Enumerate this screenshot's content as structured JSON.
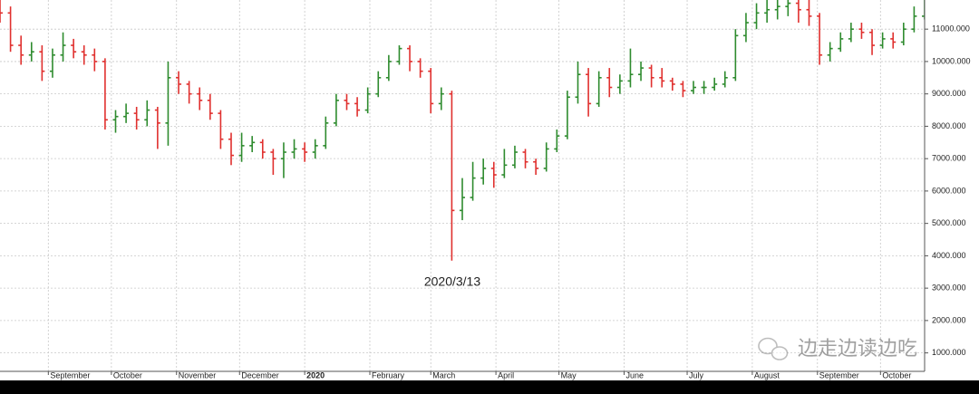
{
  "chart_data": {
    "type": "ohlc",
    "x": [
      0,
      5,
      10,
      15,
      20,
      25,
      30,
      35,
      40,
      45,
      50,
      55,
      60,
      65,
      70,
      75,
      80,
      85,
      90,
      95,
      100,
      105,
      110,
      115,
      120,
      125,
      130,
      135,
      140,
      145,
      150,
      155,
      160,
      165,
      170,
      175,
      180,
      185,
      190,
      195,
      200,
      205,
      210,
      215,
      220,
      225,
      230,
      235,
      240,
      245,
      250,
      255,
      260,
      265,
      270,
      275,
      280,
      285,
      290,
      295,
      300,
      305,
      310,
      315,
      320,
      325,
      330,
      335,
      340,
      345,
      350,
      355,
      360,
      365,
      370,
      375,
      380,
      385,
      390,
      395,
      400,
      405,
      410,
      415,
      420,
      425,
      430,
      435,
      440
    ],
    "open": [
      11700,
      11500,
      10500,
      10200,
      10300,
      9700,
      10200,
      10500,
      10300,
      10200,
      10000,
      8200,
      8300,
      8400,
      8200,
      8500,
      8100,
      9500,
      9300,
      9000,
      8800,
      8400,
      7600,
      7100,
      7400,
      7500,
      7200,
      7000,
      7200,
      7300,
      7200,
      7400,
      8100,
      8800,
      8700,
      8500,
      9000,
      9500,
      10000,
      10400,
      10000,
      9700,
      8700,
      9000,
      5400,
      5800,
      6400,
      6700,
      6500,
      6800,
      7200,
      6900,
      6700,
      7300,
      7700,
      8900,
      9600,
      8700,
      9500,
      9200,
      9400,
      9600,
      9800,
      9500,
      9400,
      9300,
      9100,
      9200,
      9200,
      9300,
      9500,
      10800,
      11200,
      11500,
      11600,
      11700,
      11800,
      11600,
      11400,
      10200,
      10400,
      10700,
      11000,
      10900,
      10500,
      10700,
      10600,
      11000,
      11400
    ],
    "high": [
      11950,
      11700,
      10800,
      10600,
      10500,
      10400,
      10900,
      10700,
      10500,
      10400,
      10100,
      8500,
      8700,
      8600,
      8800,
      8600,
      10000,
      9700,
      9400,
      9200,
      9000,
      8500,
      7800,
      7800,
      7700,
      7600,
      7300,
      7500,
      7600,
      7500,
      7600,
      8300,
      9000,
      9000,
      8900,
      9200,
      9700,
      10200,
      10500,
      10500,
      10100,
      9800,
      9200,
      9100,
      6400,
      6900,
      7000,
      6900,
      7300,
      7400,
      7300,
      7000,
      7500,
      7900,
      9100,
      10000,
      9800,
      9700,
      9800,
      9600,
      10400,
      10000,
      9900,
      9800,
      9500,
      9400,
      9400,
      9400,
      9500,
      9700,
      11000,
      11500,
      11800,
      11900,
      11900,
      11950,
      11950,
      11900,
      11500,
      10600,
      10900,
      11200,
      11200,
      11000,
      10900,
      10900,
      11200,
      11700,
      11900
    ],
    "low": [
      11200,
      10300,
      9900,
      10000,
      9400,
      9500,
      10000,
      10100,
      9900,
      9700,
      7900,
      7800,
      8100,
      7900,
      8000,
      7300,
      7400,
      9000,
      8700,
      8500,
      8200,
      7300,
      6800,
      6900,
      7200,
      7000,
      6500,
      6400,
      7000,
      6900,
      7000,
      7300,
      8000,
      8500,
      8300,
      8400,
      8900,
      9400,
      9900,
      9700,
      9500,
      8400,
      8500,
      3850,
      5100,
      5700,
      6200,
      6100,
      6400,
      6700,
      6700,
      6500,
      6600,
      7200,
      7600,
      8700,
      8300,
      8600,
      8900,
      9000,
      9200,
      9400,
      9200,
      9200,
      9100,
      8900,
      9000,
      9000,
      9100,
      9200,
      9400,
      10600,
      11000,
      11200,
      11300,
      11400,
      11200,
      11100,
      9900,
      10000,
      10300,
      10600,
      10700,
      10200,
      10400,
      10400,
      10500,
      10900,
      11300
    ],
    "close": [
      11500,
      10500,
      10200,
      10300,
      9700,
      10200,
      10500,
      10300,
      10200,
      10000,
      8200,
      8300,
      8400,
      8200,
      8500,
      8100,
      9500,
      9300,
      9000,
      8800,
      8400,
      7600,
      7100,
      7400,
      7500,
      7200,
      7000,
      7200,
      7300,
      7200,
      7400,
      8100,
      8800,
      8700,
      8500,
      9000,
      9500,
      10000,
      10400,
      10000,
      9700,
      8700,
      9000,
      5400,
      5800,
      6400,
      6700,
      6500,
      6800,
      7200,
      6900,
      6700,
      7300,
      7700,
      8900,
      9600,
      8700,
      9500,
      9200,
      9400,
      9600,
      9800,
      9500,
      9400,
      9300,
      9100,
      9200,
      9200,
      9300,
      9500,
      10800,
      11200,
      11500,
      11600,
      11700,
      11800,
      11600,
      11400,
      10200,
      10400,
      10700,
      11000,
      10900,
      10500,
      10700,
      10600,
      11000,
      11400,
      11600
    ],
    "up_color": "#2e8b2e",
    "down_color": "#e0302e",
    "xlim": [
      0,
      440
    ],
    "xticks": [
      {
        "value": 23,
        "label": "September"
      },
      {
        "value": 53,
        "label": "October"
      },
      {
        "value": 84,
        "label": "November"
      },
      {
        "value": 114,
        "label": "December"
      },
      {
        "value": 145,
        "label": "2020"
      },
      {
        "value": 176,
        "label": "February"
      },
      {
        "value": 205,
        "label": "March"
      },
      {
        "value": 236,
        "label": "April"
      },
      {
        "value": 266,
        "label": "May"
      },
      {
        "value": 297,
        "label": "June"
      },
      {
        "value": 327,
        "label": "July"
      },
      {
        "value": 358,
        "label": "August"
      },
      {
        "value": 389,
        "label": "September"
      },
      {
        "value": 419,
        "label": "October"
      }
    ],
    "ylim": [
      430,
      11900
    ],
    "yticks": [
      {
        "value": 1000,
        "label": "1000.000"
      },
      {
        "value": 2000,
        "label": "2000.000"
      },
      {
        "value": 3000,
        "label": "3000.000"
      },
      {
        "value": 4000,
        "label": "4000.000"
      },
      {
        "value": 5000,
        "label": "5000.000"
      },
      {
        "value": 6000,
        "label": "6000.000"
      },
      {
        "value": 7000,
        "label": "7000.000"
      },
      {
        "value": 8000,
        "label": "8000.000"
      },
      {
        "value": 9000,
        "label": "9000.000"
      },
      {
        "value": 10000,
        "label": "10000.000"
      },
      {
        "value": 11000,
        "label": "11000.000"
      }
    ],
    "grid": true,
    "annotation": "2020/3/13",
    "watermark": "边走边读边吃"
  }
}
